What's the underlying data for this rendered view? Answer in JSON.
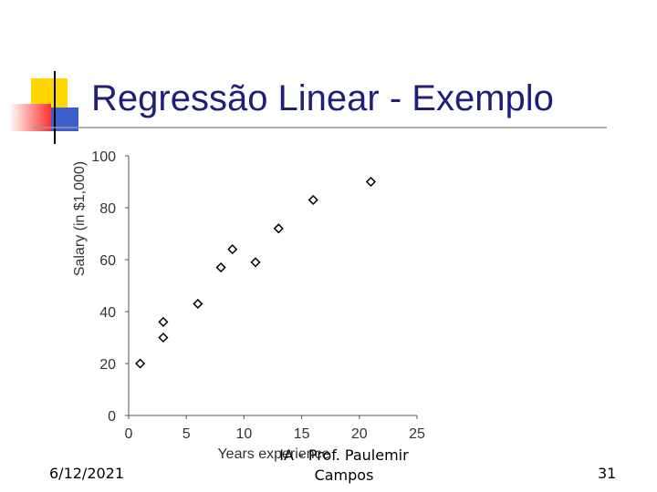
{
  "title": "Regressão Linear - Exemplo",
  "chart_data": {
    "type": "scatter",
    "xlabel": "Years experience",
    "ylabel": "Salary (in $1,000)",
    "x": [
      1,
      3,
      3,
      6,
      8,
      9,
      11,
      13,
      16,
      21
    ],
    "values": [
      20,
      36,
      30,
      43,
      57,
      64,
      59,
      72,
      83,
      90
    ],
    "color": "#000000",
    "xlim": [
      0,
      25
    ],
    "xticks": [
      0,
      5,
      10,
      15,
      20,
      25
    ],
    "ylim": [
      0,
      100
    ],
    "yticks": [
      0,
      20,
      40,
      60,
      80,
      100
    ],
    "grid": false
  },
  "footer": {
    "date": "6/12/2021",
    "author": "IA - Prof. Paulemir Campos",
    "page_number": "31"
  }
}
